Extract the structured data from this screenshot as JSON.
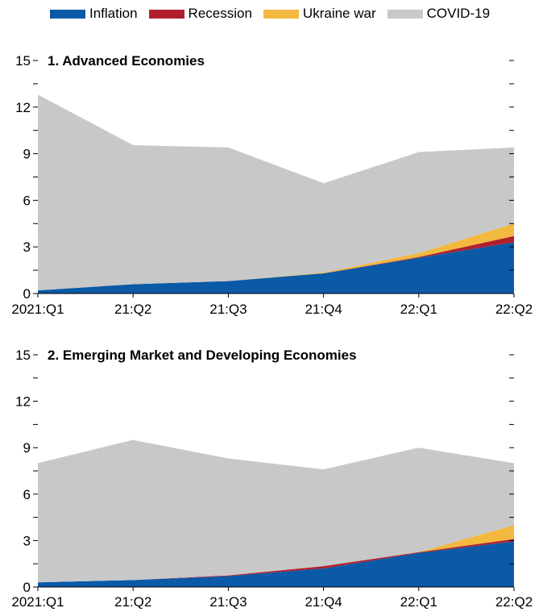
{
  "legend": {
    "items": [
      {
        "label": "Inflation",
        "color": "#0a5aa8"
      },
      {
        "label": "Recession",
        "color": "#b01f2e"
      },
      {
        "label": "Ukraine war",
        "color": "#f2b840"
      },
      {
        "label": "COVID-19",
        "color": "#c8c8c8"
      }
    ]
  },
  "chart_data": [
    {
      "type": "area",
      "stacked": true,
      "title": "1. Advanced Economies",
      "categories": [
        "2021:Q1",
        "21:Q2",
        "21:Q3",
        "21:Q4",
        "22:Q1",
        "22:Q2"
      ],
      "ylim": [
        0,
        15
      ],
      "yticks": [
        0,
        3,
        6,
        9,
        12,
        15
      ],
      "series": [
        {
          "name": "Inflation",
          "values": [
            0.2,
            0.6,
            0.8,
            1.3,
            2.3,
            3.3
          ]
        },
        {
          "name": "Recession",
          "values": [
            0,
            0,
            0,
            0,
            0.05,
            0.4
          ]
        },
        {
          "name": "Ukraine war",
          "values": [
            0,
            0,
            0,
            0.05,
            0.25,
            0.8
          ]
        },
        {
          "name": "COVID-19",
          "values": [
            12.6,
            8.95,
            8.6,
            5.75,
            6.5,
            4.9
          ]
        }
      ]
    },
    {
      "type": "area",
      "stacked": true,
      "title": "2. Emerging Market and Developing Economies",
      "categories": [
        "2021:Q1",
        "21:Q2",
        "21:Q3",
        "21:Q4",
        "22:Q1",
        "22:Q2"
      ],
      "ylim": [
        0,
        15
      ],
      "yticks": [
        0,
        3,
        6,
        9,
        12,
        15
      ],
      "series": [
        {
          "name": "Inflation",
          "values": [
            0.3,
            0.45,
            0.7,
            1.2,
            2.2,
            2.95
          ]
        },
        {
          "name": "Recession",
          "values": [
            0,
            0,
            0.05,
            0.15,
            0.05,
            0.15
          ]
        },
        {
          "name": "Ukraine war",
          "values": [
            0,
            0,
            0,
            0,
            0,
            0.9
          ]
        },
        {
          "name": "COVID-19",
          "values": [
            7.7,
            9.05,
            7.55,
            6.25,
            6.75,
            4.0
          ]
        }
      ]
    }
  ]
}
